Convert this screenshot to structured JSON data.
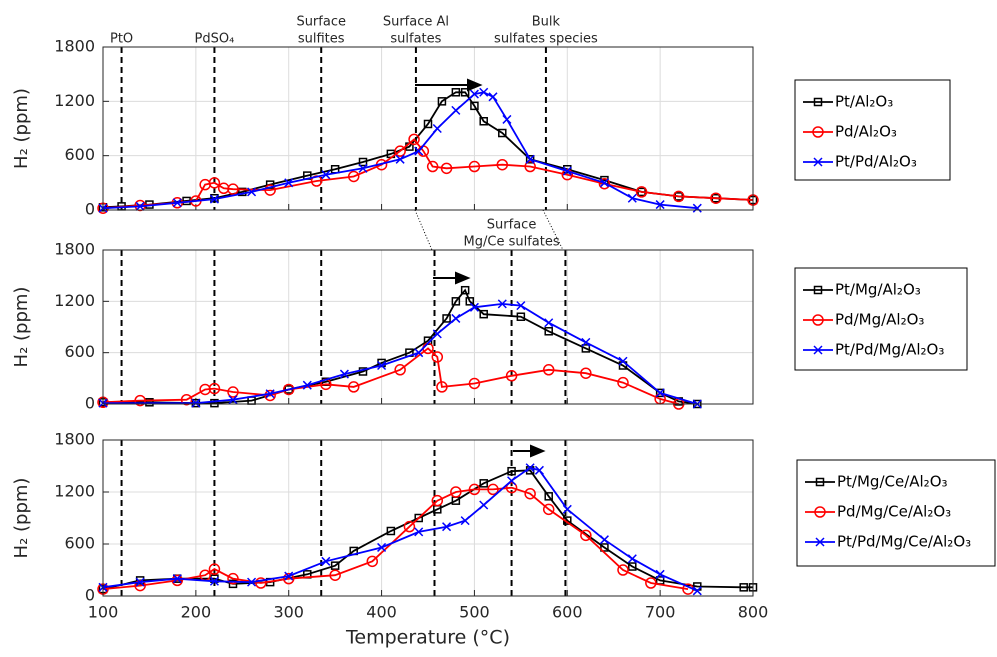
{
  "chart_data": [
    {
      "type": "line",
      "ylabel": "H₂ (ppm)",
      "xlim": [
        100,
        800
      ],
      "ylim": [
        0,
        1800
      ],
      "xticks": [
        100,
        200,
        300,
        400,
        500,
        600,
        700,
        800
      ],
      "yticks": [
        0,
        600,
        1200,
        1800
      ],
      "grid": true,
      "vlines": [
        120,
        220,
        335,
        437,
        577
      ],
      "annotations": [
        {
          "x": 120,
          "lines": [
            "PtO"
          ]
        },
        {
          "x": 220,
          "lines": [
            "PdSO₄"
          ]
        },
        {
          "x": 335,
          "lines": [
            "Surface",
            "sulfites"
          ]
        },
        {
          "x": 437,
          "lines": [
            "Surface Al",
            "sulfates"
          ]
        },
        {
          "x": 577,
          "lines": [
            "Bulk",
            "sulfates species"
          ]
        }
      ],
      "series": [
        {
          "name": "Pt/Al₂O₃",
          "color": "#000000",
          "marker": "square",
          "x": [
            100,
            120,
            150,
            190,
            220,
            250,
            280,
            320,
            350,
            380,
            410,
            430,
            450,
            465,
            480,
            490,
            500,
            510,
            530,
            560,
            600,
            640,
            680,
            720,
            760,
            800
          ],
          "values": [
            30,
            40,
            60,
            100,
            130,
            200,
            280,
            380,
            450,
            530,
            620,
            700,
            950,
            1200,
            1300,
            1300,
            1150,
            980,
            850,
            560,
            450,
            330,
            200,
            150,
            130,
            110
          ]
        },
        {
          "name": "Pd/Al₂O₃",
          "color": "#ff0000",
          "marker": "circle",
          "x": [
            100,
            140,
            180,
            200,
            210,
            220,
            230,
            240,
            280,
            330,
            370,
            400,
            420,
            435,
            445,
            455,
            470,
            500,
            530,
            560,
            600,
            640,
            680,
            720,
            760,
            800
          ],
          "values": [
            20,
            50,
            80,
            100,
            280,
            300,
            240,
            230,
            220,
            320,
            370,
            500,
            650,
            780,
            650,
            480,
            460,
            480,
            500,
            480,
            390,
            290,
            200,
            150,
            130,
            110
          ]
        },
        {
          "name": "Pt/Pd/Al₂O₃",
          "color": "#0000ff",
          "marker": "x",
          "x": [
            100,
            140,
            180,
            220,
            260,
            300,
            340,
            380,
            420,
            440,
            460,
            480,
            500,
            510,
            520,
            535,
            560,
            600,
            640,
            670,
            700,
            740
          ],
          "values": [
            20,
            40,
            80,
            120,
            200,
            300,
            390,
            460,
            560,
            650,
            900,
            1100,
            1280,
            1300,
            1250,
            1000,
            560,
            430,
            300,
            130,
            60,
            20
          ]
        }
      ]
    },
    {
      "type": "line",
      "ylabel": "H₂ (ppm)",
      "xlim": [
        100,
        800
      ],
      "ylim": [
        0,
        1800
      ],
      "xticks": [
        100,
        200,
        300,
        400,
        500,
        600,
        700,
        800
      ],
      "yticks": [
        0,
        600,
        1200,
        1800
      ],
      "grid": true,
      "vlines": [
        120,
        220,
        335,
        457,
        540,
        598
      ],
      "annotations": [
        {
          "x": 540,
          "lines": [
            "Surface",
            "Mg/Ce sulfates"
          ]
        }
      ],
      "series": [
        {
          "name": "Pt/Mg/Al₂O₃",
          "color": "#000000",
          "marker": "square",
          "x": [
            100,
            150,
            200,
            220,
            260,
            300,
            340,
            380,
            400,
            430,
            450,
            470,
            480,
            490,
            495,
            510,
            550,
            580,
            620,
            660,
            700,
            720,
            740
          ],
          "values": [
            20,
            20,
            10,
            10,
            40,
            170,
            260,
            380,
            480,
            600,
            740,
            1000,
            1200,
            1330,
            1200,
            1050,
            1020,
            850,
            650,
            450,
            130,
            30,
            0
          ]
        },
        {
          "name": "Pd/Mg/Al₂O₃",
          "color": "#ff0000",
          "marker": "circle",
          "x": [
            100,
            140,
            190,
            210,
            220,
            240,
            280,
            300,
            340,
            370,
            420,
            450,
            460,
            465,
            500,
            540,
            580,
            620,
            660,
            700,
            720
          ],
          "values": [
            20,
            40,
            50,
            170,
            180,
            140,
            100,
            170,
            230,
            200,
            400,
            650,
            550,
            200,
            240,
            330,
            400,
            360,
            250,
            60,
            0
          ]
        },
        {
          "name": "Pt/Pd/Mg/Al₂O₃",
          "color": "#0000ff",
          "marker": "x",
          "x": [
            100,
            200,
            240,
            280,
            320,
            360,
            400,
            440,
            460,
            480,
            500,
            530,
            550,
            580,
            620,
            660,
            700,
            740
          ],
          "values": [
            10,
            10,
            50,
            120,
            220,
            350,
            450,
            600,
            820,
            1000,
            1130,
            1170,
            1150,
            950,
            720,
            500,
            130,
            0
          ]
        }
      ]
    },
    {
      "type": "line",
      "ylabel": "H₂ (ppm)",
      "xlabel": "Temperature (°C)",
      "xlim": [
        100,
        800
      ],
      "ylim": [
        0,
        1800
      ],
      "xticks": [
        100,
        200,
        300,
        400,
        500,
        600,
        700,
        800
      ],
      "yticks": [
        0,
        600,
        1200,
        1800
      ],
      "grid": true,
      "vlines": [
        120,
        220,
        335,
        457,
        540,
        598
      ],
      "series": [
        {
          "name": "Pt/Mg/Ce/Al₂O₃",
          "color": "#000000",
          "marker": "square",
          "x": [
            100,
            140,
            180,
            220,
            240,
            280,
            320,
            350,
            370,
            410,
            440,
            460,
            480,
            510,
            540,
            560,
            580,
            600,
            640,
            670,
            700,
            740,
            790,
            800
          ],
          "values": [
            80,
            180,
            200,
            200,
            140,
            160,
            250,
            350,
            520,
            750,
            900,
            1000,
            1100,
            1300,
            1440,
            1450,
            1150,
            870,
            560,
            340,
            180,
            110,
            100,
            100
          ]
        },
        {
          "name": "Pd/Mg/Ce/Al₂O₃",
          "color": "#ff0000",
          "marker": "circle",
          "x": [
            100,
            140,
            180,
            210,
            220,
            240,
            270,
            300,
            350,
            390,
            430,
            460,
            480,
            500,
            520,
            540,
            560,
            580,
            620,
            660,
            690,
            730
          ],
          "values": [
            80,
            120,
            180,
            240,
            310,
            200,
            150,
            200,
            240,
            400,
            800,
            1100,
            1200,
            1230,
            1230,
            1250,
            1180,
            1000,
            700,
            300,
            150,
            80
          ]
        },
        {
          "name": "Pt/Pd/Mg/Ce/Al₂O₃",
          "color": "#0000ff",
          "marker": "x",
          "x": [
            100,
            140,
            180,
            220,
            260,
            300,
            340,
            400,
            440,
            470,
            490,
            510,
            540,
            560,
            570,
            600,
            640,
            670,
            700,
            740
          ],
          "values": [
            100,
            160,
            200,
            170,
            160,
            230,
            400,
            560,
            740,
            800,
            870,
            1050,
            1330,
            1480,
            1450,
            1000,
            650,
            430,
            250,
            60
          ]
        }
      ]
    }
  ]
}
